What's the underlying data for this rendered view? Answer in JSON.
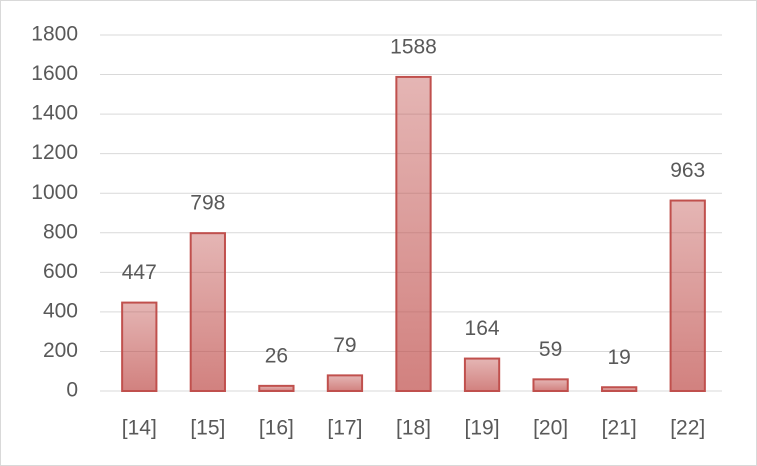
{
  "chart_data": {
    "type": "bar",
    "categories": [
      "[14]",
      "[15]",
      "[16]",
      "[17]",
      "[18]",
      "[19]",
      "[20]",
      "[21]",
      "[22]"
    ],
    "values": [
      447,
      798,
      26,
      79,
      1588,
      164,
      59,
      19,
      963
    ],
    "color": "#c0504d",
    "ylim": [
      0,
      1800
    ],
    "yticks": [
      0,
      200,
      400,
      600,
      800,
      1000,
      1200,
      1400,
      1600,
      1800
    ],
    "grid": true
  }
}
